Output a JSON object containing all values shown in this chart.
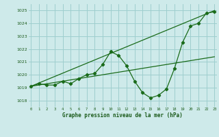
{
  "xlabel": "Graphe pression niveau de la mer (hPa)",
  "bg_color": "#ceeaea",
  "grid_color": "#9ecece",
  "line_color": "#1a6b1a",
  "x_ticks": [
    0,
    1,
    2,
    3,
    4,
    5,
    6,
    7,
    8,
    9,
    10,
    11,
    12,
    13,
    14,
    15,
    16,
    17,
    18,
    19,
    20,
    21,
    22,
    23
  ],
  "ylim": [
    1017.5,
    1025.5
  ],
  "xlim": [
    -0.3,
    23.3
  ],
  "line1": {
    "x": [
      0,
      1,
      2,
      3,
      4,
      5,
      6,
      7,
      8,
      9,
      10,
      11,
      12,
      13,
      14,
      15,
      16,
      17,
      18,
      19,
      20,
      21,
      22,
      23
    ],
    "y": [
      1019.1,
      1019.3,
      1019.2,
      1019.2,
      1019.5,
      1019.3,
      1019.7,
      1020.0,
      1020.1,
      1020.8,
      1021.8,
      1021.5,
      1020.7,
      1019.5,
      1018.6,
      1018.2,
      1018.4,
      1018.9,
      1020.5,
      1022.5,
      1023.8,
      1024.0,
      1024.8,
      1024.9
    ]
  },
  "line2": {
    "x": [
      0,
      23
    ],
    "y": [
      1019.1,
      1025.0
    ]
  },
  "line3": {
    "x": [
      0,
      23
    ],
    "y": [
      1019.1,
      1021.4
    ]
  }
}
